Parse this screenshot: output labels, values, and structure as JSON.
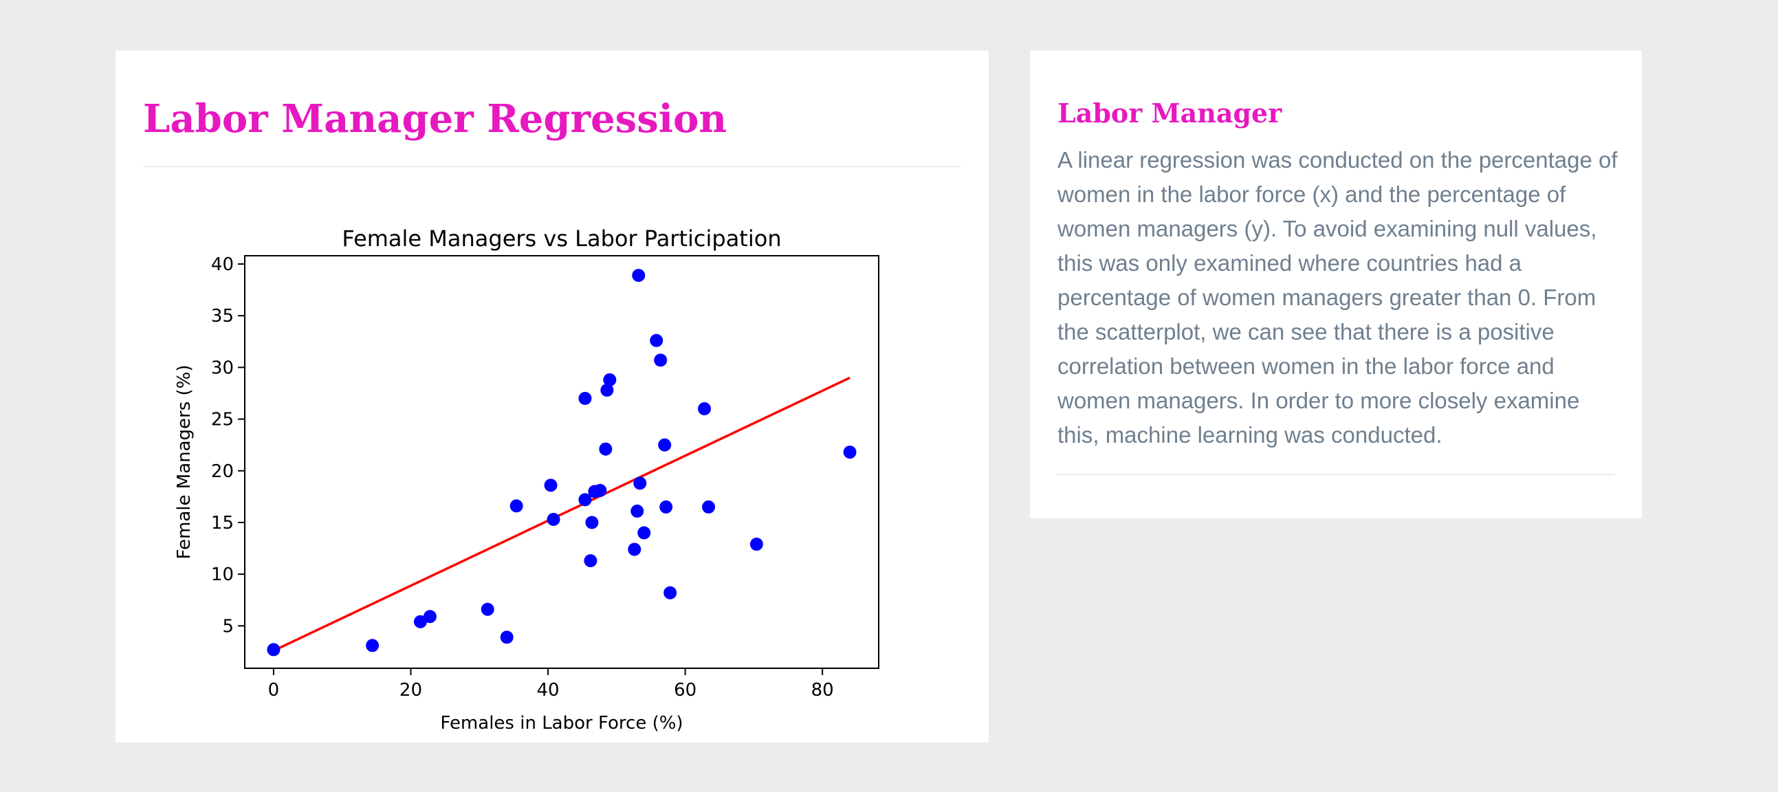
{
  "main": {
    "heading": "Labor Manager Regression"
  },
  "side": {
    "heading": "Labor Manager",
    "text": "A linear regression was conducted on the percentage of women in the labor force (x) and the percentage of women managers (y). To avoid examining null values, this was only examined where countries had a percentage of women managers greater than 0. From the scatterplot, we can see that there is a positive correlation between women in the labor force and women managers. In order to more closely examine this, machine learning was conducted."
  },
  "colors": {
    "accent": "#e619c0",
    "body_text": "#6f7f8f",
    "points": "#0000ff",
    "fit_line": "#ff0000"
  },
  "chart_data": {
    "type": "scatter",
    "title": "Female Managers vs Labor Participation",
    "xlabel": "Females in Labor Force (%)",
    "ylabel": "Female Managers (%)",
    "xlim": [
      -4.2,
      88.2
    ],
    "ylim": [
      0.9,
      40.8
    ],
    "xticks": [
      0,
      20,
      40,
      60,
      80
    ],
    "yticks": [
      5,
      10,
      15,
      20,
      25,
      30,
      35,
      40
    ],
    "grid": false,
    "legend": "none",
    "series": [
      {
        "kind": "points",
        "x": [
          0.0,
          14.4,
          21.4,
          22.8,
          31.2,
          34.0,
          35.4,
          40.4,
          40.8,
          45.4,
          45.4,
          46.2,
          46.4,
          46.8,
          47.6,
          48.4,
          48.6,
          49.0,
          52.6,
          53.0,
          53.2,
          53.4,
          54.0,
          55.8,
          56.4,
          57.0,
          57.2,
          57.8,
          62.8,
          63.4,
          70.4,
          84.0
        ],
        "y": [
          2.7,
          3.1,
          5.4,
          5.9,
          6.6,
          3.9,
          16.6,
          18.6,
          15.3,
          17.2,
          27.0,
          11.3,
          15.0,
          18.0,
          18.1,
          22.1,
          27.8,
          28.8,
          12.4,
          16.1,
          38.9,
          18.8,
          14.0,
          32.6,
          30.7,
          22.5,
          16.5,
          8.2,
          26.0,
          16.5,
          12.9,
          21.8
        ]
      },
      {
        "kind": "fit_line",
        "x": [
          0.0,
          84.0
        ],
        "y": [
          2.6,
          29.0
        ]
      }
    ]
  }
}
